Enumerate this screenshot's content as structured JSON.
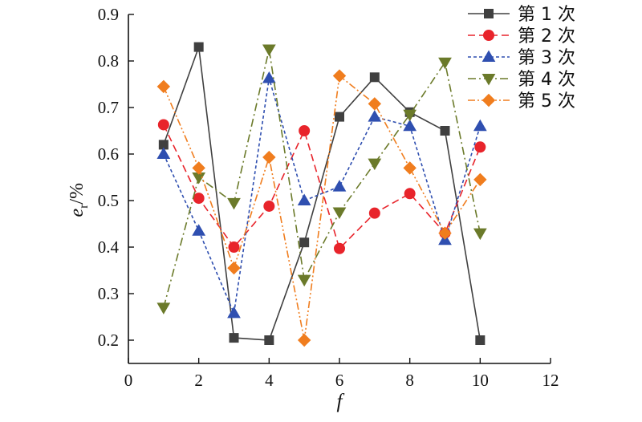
{
  "chart_data": {
    "type": "line",
    "title": "",
    "xlabel": "f",
    "ylabel_main": "e",
    "ylabel_sub": "r",
    "ylabel_unit": "/%",
    "xlim": [
      0,
      12
    ],
    "ylim": [
      0.15,
      0.9
    ],
    "xticks": [
      0,
      2,
      4,
      6,
      8,
      10,
      12
    ],
    "yticks": [
      0.2,
      0.3,
      0.4,
      0.5,
      0.6,
      0.7,
      0.8,
      0.9
    ],
    "grid": false,
    "legend_position": "top-right",
    "x": [
      1,
      2,
      3,
      4,
      5,
      6,
      7,
      8,
      9,
      10
    ],
    "series": [
      {
        "name": "第 1 次",
        "color": "#404040",
        "marker": "square",
        "dash": "solid",
        "values": [
          0.62,
          0.83,
          0.205,
          0.2,
          0.41,
          0.68,
          0.765,
          0.69,
          0.65,
          0.2
        ]
      },
      {
        "name": "第 2 次",
        "color": "#e8242b",
        "marker": "circle",
        "dash": "dash",
        "values": [
          0.663,
          0.505,
          0.4,
          0.488,
          0.65,
          0.397,
          0.473,
          0.515,
          0.43,
          0.615
        ]
      },
      {
        "name": "第 3 次",
        "color": "#2f4fb0",
        "marker": "triangle-up",
        "dash": "short-dash",
        "values": [
          0.6,
          0.435,
          0.258,
          0.763,
          0.5,
          0.53,
          0.68,
          0.66,
          0.415,
          0.66
        ]
      },
      {
        "name": "第 4 次",
        "color": "#6b7a2a",
        "marker": "triangle-down",
        "dash": "dash-dot",
        "values": [
          0.27,
          0.55,
          0.495,
          0.825,
          0.33,
          0.475,
          0.58,
          0.685,
          0.797,
          0.43
        ]
      },
      {
        "name": "第 5 次",
        "color": "#f07d1e",
        "marker": "diamond",
        "dash": "dash-dot-dot",
        "values": [
          0.745,
          0.57,
          0.355,
          0.593,
          0.2,
          0.768,
          0.708,
          0.57,
          0.43,
          0.545
        ]
      }
    ]
  }
}
